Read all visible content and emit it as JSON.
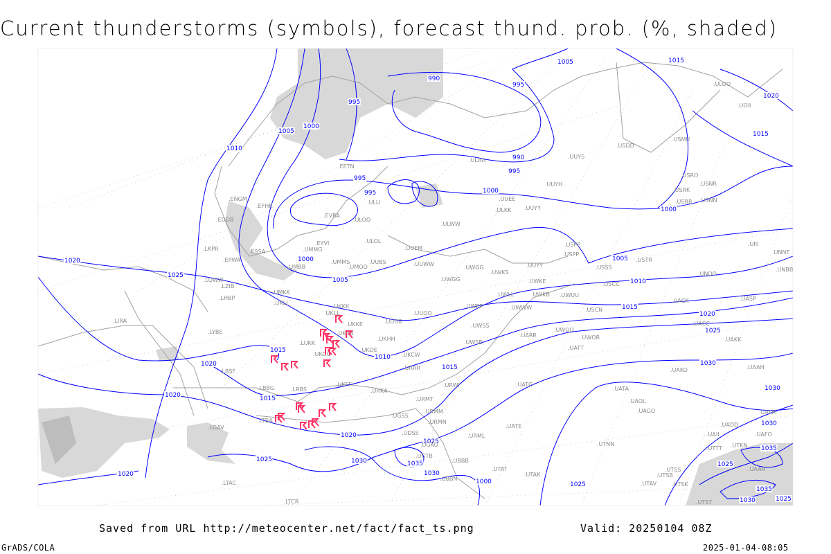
{
  "title": "Current thunderstorms (symbols), forecast thund. prob. (%, shaded)",
  "footer": {
    "source": "Saved from URL http://meteocenter.net/fact/fact_ts.png",
    "valid": "Valid: 20250104 08Z",
    "software": "GrADS/COLA",
    "timestamp": "2025-01-04-08:05"
  },
  "colors": {
    "isobar": "#0000ff",
    "thunderstorm_symbol": "#ff3366",
    "shading": "#d8d8d8",
    "coastline": "#a0a0a0",
    "station_label": "#8a8a8a"
  },
  "thunderstorm_symbol_icon": "thunderstorm-flag-icon",
  "isobar_labels": [
    "1015",
    "1005",
    "990",
    "995",
    "995",
    "1005",
    "1000",
    "1010",
    "1020",
    "1015",
    "990",
    "995",
    "995",
    "995",
    "1000",
    "1000",
    "1020",
    "1025",
    "1000",
    "1005",
    "1005",
    "1010",
    "1015",
    "1020",
    "1025",
    "1030",
    "1010",
    "1015",
    "1015",
    "1020",
    "1020",
    "1015",
    "1020",
    "1025",
    "1030",
    "1035",
    "1030",
    "1025",
    "1020",
    "1000",
    "1025",
    "1030",
    "1030",
    "1035",
    "1035",
    "1025",
    "1030",
    "1025"
  ],
  "stations": [
    "ULOO",
    "UOII",
    "USDD",
    "USMU",
    "UUYS",
    "ULAA",
    "UUYH",
    "USRO",
    "USRK",
    "USNR",
    "USRR",
    "USNN",
    "ULKK",
    "UUYY",
    "ULWW",
    "ULOO",
    "ULOL",
    "EVRA",
    "EYVI",
    "UMMG",
    "UMBB",
    "UMMS",
    "UMOO",
    "UUBS",
    "UUEM",
    "UUWW",
    "UWGG",
    "UWKS",
    "UUYY",
    "USPP",
    "USSS",
    "USTR",
    "USCC",
    "UNOO",
    "USCN",
    "UACK",
    "UASP",
    "UMKK",
    "UKLI",
    "UKKK",
    "UUOB",
    "UUOO",
    "UWPP",
    "UWLL",
    "UWKE",
    "UWKB",
    "UWUU",
    "UWWW",
    "UKBB",
    "UKHH",
    "UKDE",
    "UKOO",
    "UKCW",
    "UWSS",
    "UWSB",
    "UARR",
    "UWOO",
    "UWOR",
    "UATT",
    "UACC",
    "UAKK",
    "UAKO",
    "UAAH",
    "URRR",
    "URWI",
    "URKA",
    "UKFF",
    "URMT",
    "URMM",
    "URMN",
    "URML",
    "UGSS",
    "UDSS",
    "UGTB",
    "UBBB",
    "UBBN",
    "UGKO",
    "UTAK",
    "UTAT",
    "UATE",
    "UATG",
    "UATA",
    "UAOL",
    "UAGO",
    "UTNN",
    "UTSS",
    "UTSB",
    "UTAV",
    "UTSK",
    "UTST",
    "UADD",
    "UAII",
    "UTTT",
    "UTKN",
    "UAFM",
    "UAFO",
    "UAAA",
    "LBSF",
    "LBBG",
    "LTBA",
    "LRBS",
    "LYBE",
    "LHBP",
    "LKPR",
    "LOWW",
    "LZIB",
    "LIRA",
    "LGAV",
    "LTAC",
    "LTCR",
    "UKLL",
    "UKKE",
    "LUKK",
    "ESSA",
    "EFHK",
    "EETN",
    "ULLI",
    "EPWA",
    "EDDB",
    "ENGM",
    "UNNT",
    "UNBB",
    "UIII",
    "UUEE",
    "UWGG",
    "USPP"
  ]
}
